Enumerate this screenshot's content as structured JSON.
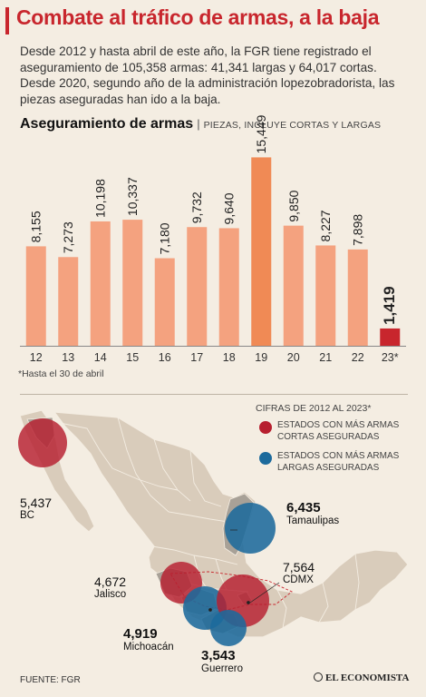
{
  "title": "Combate al tráfico de armas, a la baja",
  "intro": "Desde 2012 y hasta abril de este año, la FGR tiene registrado el aseguramiento de 105,358 armas: 41,341 largas y 64,017 cortas. Desde 2020, segundo año de la administración lopezobradorista, las piezas aseguradas han ido a la baja.",
  "chart_data": {
    "type": "bar",
    "title": "Aseguramiento de armas",
    "subtitle": "PIEZAS, INCLUYE CORTAS Y LARGAS",
    "categories": [
      "12",
      "13",
      "14",
      "15",
      "16",
      "17",
      "18",
      "19",
      "20",
      "21",
      "22",
      "23*"
    ],
    "values": [
      8155,
      7273,
      10198,
      10337,
      7180,
      9732,
      9640,
      15449,
      9850,
      8227,
      7898,
      1419
    ],
    "value_labels": [
      "8,155",
      "7,273",
      "10,198",
      "10,337",
      "7,180",
      "9,732",
      "9,640",
      "15,449",
      "9,850",
      "8,227",
      "7,898",
      "1,419"
    ],
    "ylim": [
      0,
      16000
    ],
    "colors": {
      "default": "#f4a27f",
      "peak": "#f08a55",
      "highlight": "#c8262d"
    },
    "grid": false
  },
  "footnote": "*Hasta el 30 de abril",
  "map": {
    "legend_title": "CIFRAS DE 2012 AL 2023*",
    "legend": [
      {
        "label": "ESTADOS CON MÁS ARMAS CORTAS ASEGURADAS",
        "color": "#b71f2f"
      },
      {
        "label": "ESTADOS CON MÁS ARMAS LARGAS ASEGURADAS",
        "color": "#1c6a9c"
      }
    ],
    "states": [
      {
        "name": "BC",
        "value": "5,437",
        "type": "cortas"
      },
      {
        "name": "Tamaulipas",
        "value": "6,435",
        "type": "largas"
      },
      {
        "name": "CDMX",
        "value": "7,564",
        "type": "cortas"
      },
      {
        "name": "Jalisco",
        "value": "4,672",
        "type": "cortas"
      },
      {
        "name": "Michoacán",
        "value": "4,919",
        "type": "largas"
      },
      {
        "name": "Guerrero",
        "value": "3,543",
        "type": "largas"
      }
    ]
  },
  "source": "FUENTE: FGR",
  "brand": "EL ECONOMISTA"
}
